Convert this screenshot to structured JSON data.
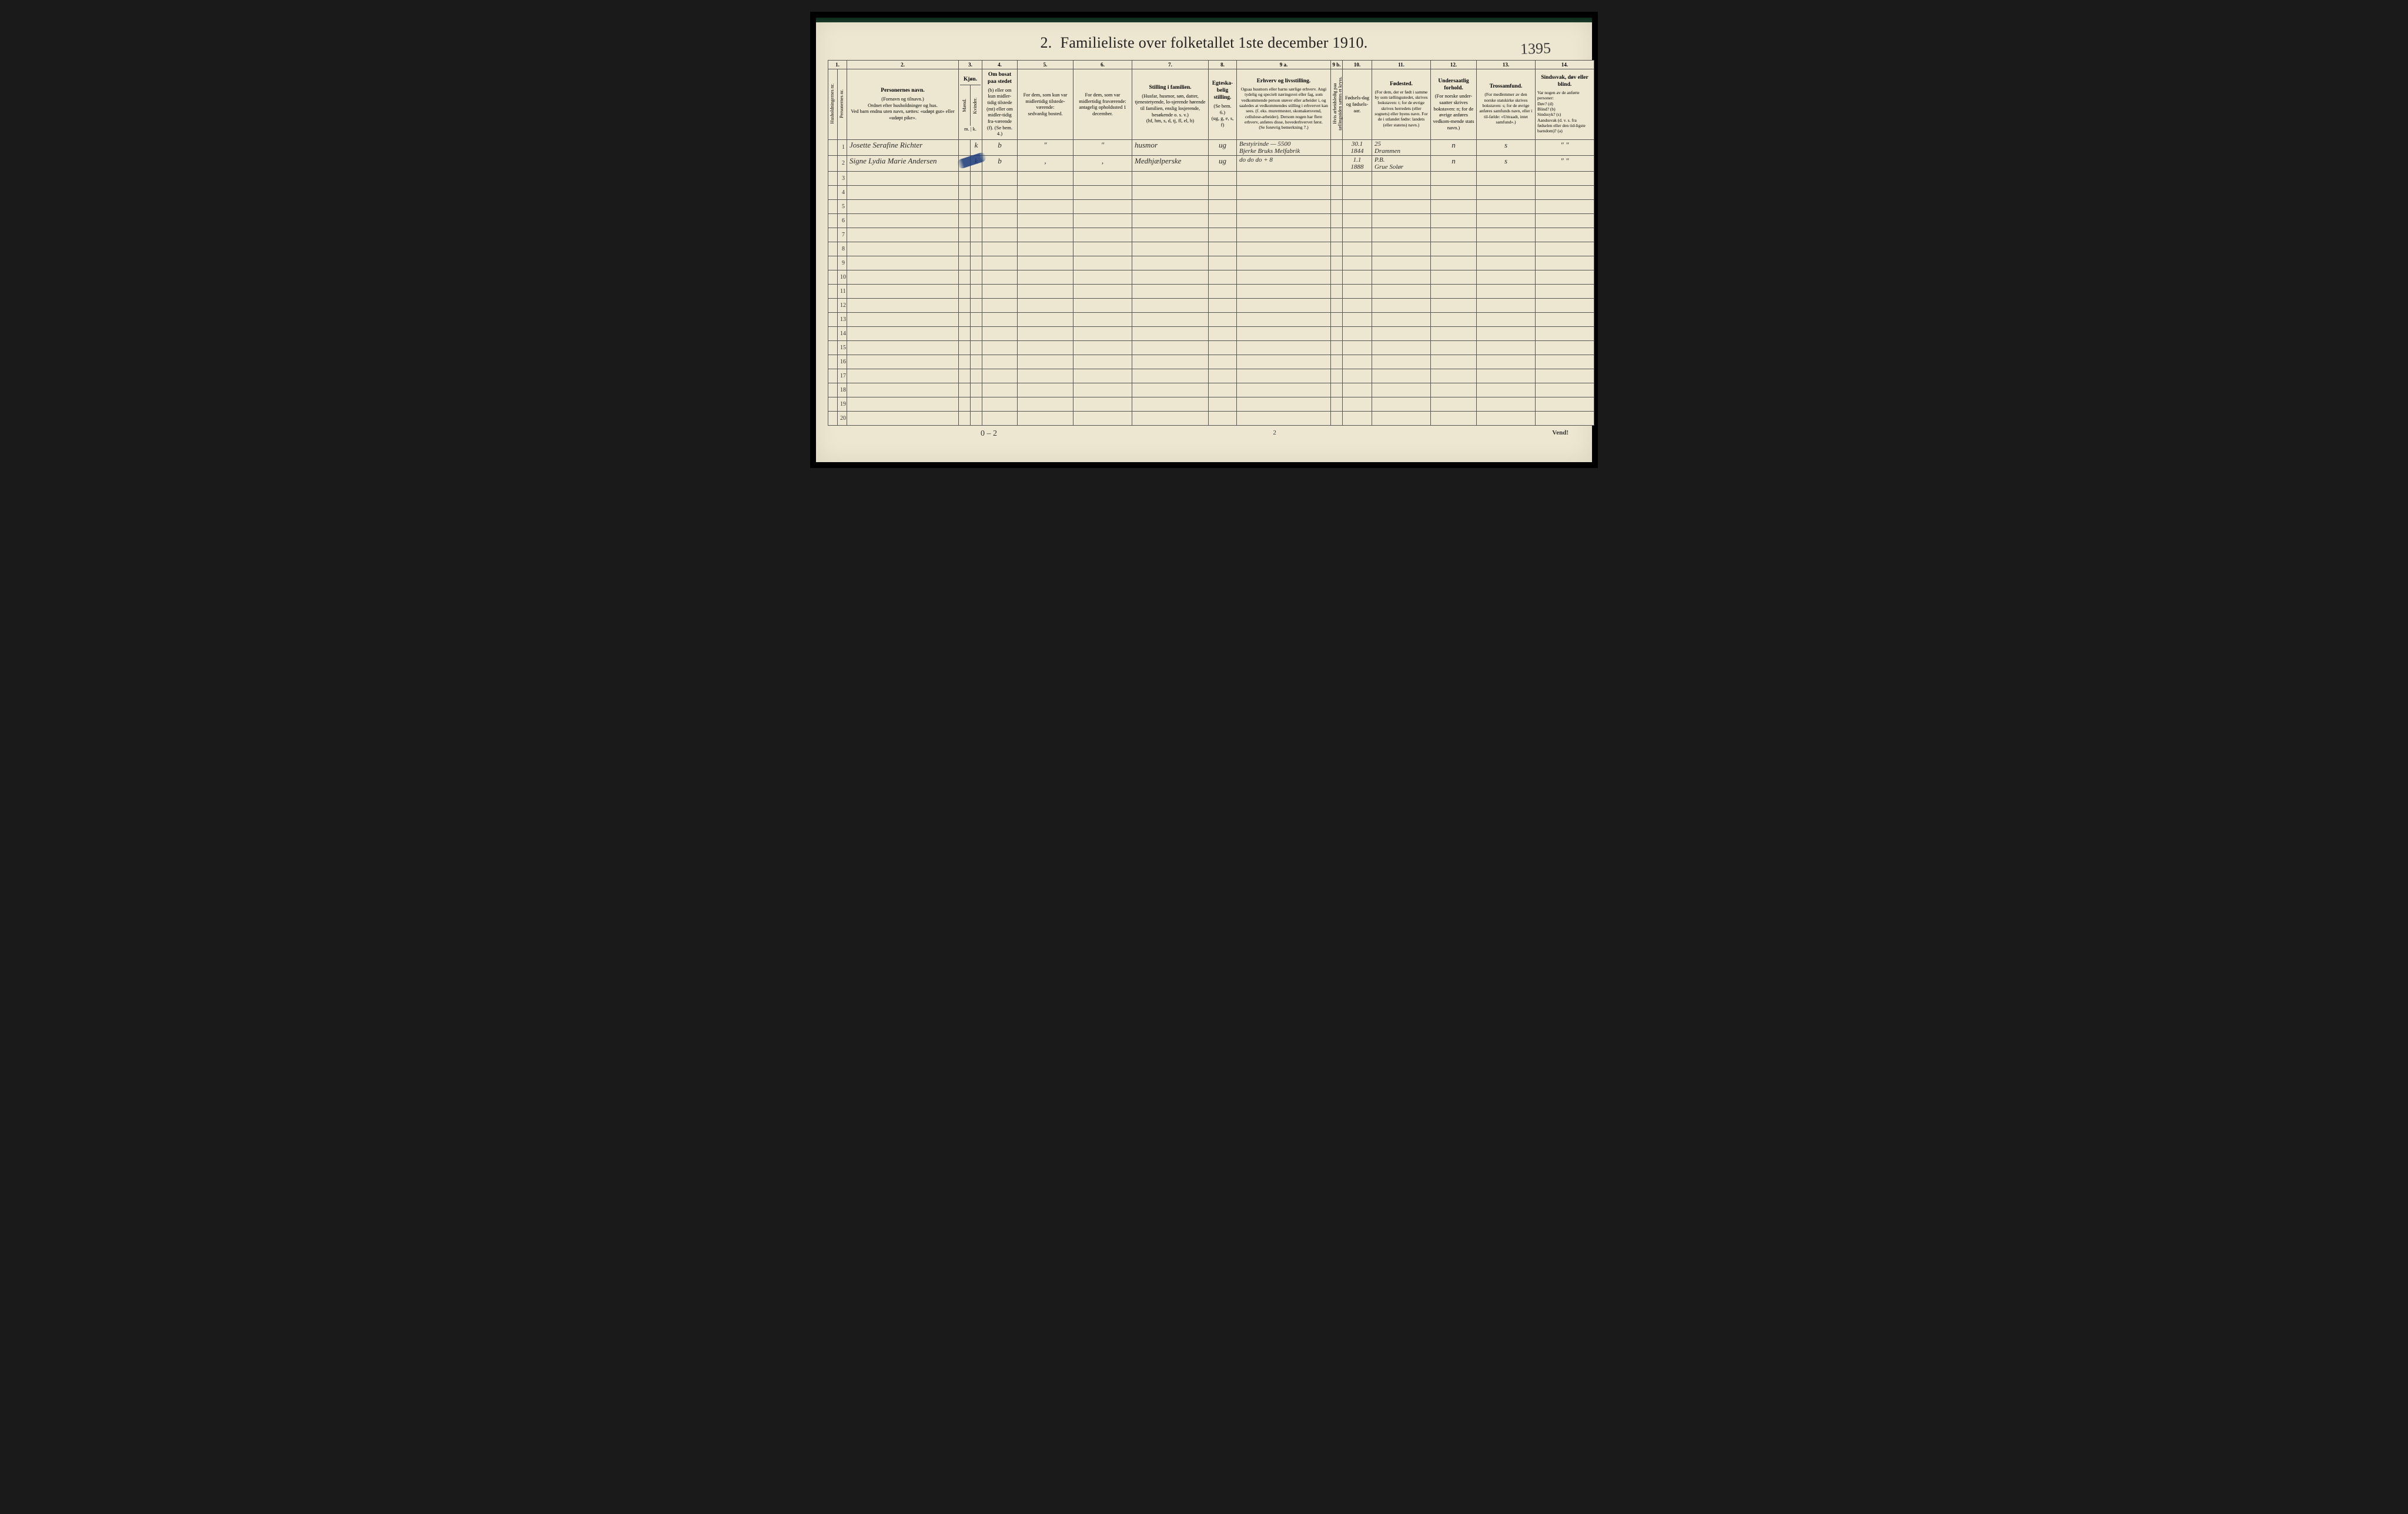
{
  "handwritten_topright": "1395",
  "title_num": "2.",
  "title_text": "Familieliste over folketallet 1ste december 1910.",
  "colnums": [
    "1.",
    "2.",
    "3.",
    "4.",
    "5.",
    "6.",
    "7.",
    "8.",
    "9 a.",
    "9 b.",
    "10.",
    "11.",
    "12.",
    "13.",
    "14."
  ],
  "headers": {
    "h1a": "Husholdningernes nr.",
    "h1b": "Personernes nr.",
    "h2_title": "Personernes navn.",
    "h2_sub": "(Fornavn og tilnavn.)\nOrdnet efter husholdninger og hus.\nVed barn endnu uten navn, sættes: «udøpt gut» eller «udøpt pike».",
    "h3_title": "Kjøn.",
    "h3a": "Mænd.",
    "h3b": "Kvinder.",
    "h3_note": "m. | k.",
    "h4_title": "Om bosat paa stedet",
    "h4_sub": "(b) eller om kun midler-tidig tilstede (mt) eller om midler-tidig fra-værende (f). (Se bem. 4.)",
    "h5": "For dem, som kun var midlertidig tilstede-værende:\nsedvanlig bosted.",
    "h6": "For dem, som var midlertidig fraværende:\nantagelig opholdssted 1 december.",
    "h7_title": "Stilling i familien.",
    "h7_sub": "(Husfar, husmor, søn, datter, tjenestetyende, lo-sjerende hørende til familien, enslig losjerende, besøkende o. s. v.)\n(hf, hm, s, d, tj, fl, el, b)",
    "h8_title": "Egteska-belig stilling.",
    "h8_sub": "(Se bem. 6.)\n(ug, g, e, s, f)",
    "h9a_title": "Erhverv og livsstilling.",
    "h9a_sub": "Ogsaa husmors eller barns særlige erhverv. Angi tydelig og specielt næringsvei eller fag, som vedkommende person utøver eller arbeider i, og saaledes at vedkommendes stilling i erhvervet kan sees. (f. eks. murermester, skomakersvend, cellulose-arbeider). Dersom nogen har flere erhverv, anføres disse, hovederhvervet først.\n(Se forøvrig bemerkning 7.)",
    "h9b": "Hvis arbeidsledig paa tællingstiden sættes et kryss.",
    "h10": "Fødsels-dag og fødsels-aar.",
    "h11_title": "Fødested.",
    "h11_sub": "(For dem, der er født i samme by som tællingsstedet, skrives bokstaven: t; for de øvrige skrives herredets (eller sognets) eller byens navn. For de i utlandet fødte: landets (eller statens) navn.)",
    "h12_title": "Undersaatlig forhold.",
    "h12_sub": "(For norske under-saatter skrives bokstaven: n; for de øvrige anføres vedkom-mende stats navn.)",
    "h13_title": "Trossamfund.",
    "h13_sub": "(For medlemmer av den norske statskirke skrives bokstaven: s; for de øvrige anføres samfunds navn, eller i til-fælde: «Uttraadt, intet samfund».)",
    "h14_title": "Sindssvak, døv eller blind.",
    "h14_sub": "Var nogen av de anførte personer:\nDøv?      (d)\nBlind?    (b)\nSindssyk? (s)\nAandssvak (d. v. s. fra fødselen eller den tid-ligste barndom)? (a)"
  },
  "rows": [
    {
      "n": "1",
      "name": "Josette Serafine Richter",
      "sex_m": "",
      "sex_k": "k",
      "res": "b",
      "c5": "\"",
      "c6": "\"",
      "c7": "husmor",
      "c8": "ug",
      "c9a": "Bestyirinde  — 5500\nBjerke Bruks Melfabrik",
      "c9b": "",
      "c10": "30.1\n1844",
      "c11": "25\nDrammen",
      "c12": "n",
      "c13": "s",
      "c14": "\"   \""
    },
    {
      "n": "2",
      "name": "Signe Lydia Marie Andersen",
      "sex_m": "",
      "sex_k": "k",
      "res": "b",
      "c5": ",",
      "c6": ",",
      "c7": "Medhjælperske",
      "c8": "ug",
      "c9a": "do    do    do   + 8",
      "c9b": "",
      "c10": "1.1\n1888",
      "c11": "P.B.\nGrue Solør",
      "c12": "n",
      "c13": "s",
      "c14": "\"   \""
    },
    {
      "n": "3"
    },
    {
      "n": "4"
    },
    {
      "n": "5"
    },
    {
      "n": "6"
    },
    {
      "n": "7"
    },
    {
      "n": "8"
    },
    {
      "n": "9"
    },
    {
      "n": "10"
    },
    {
      "n": "11"
    },
    {
      "n": "12"
    },
    {
      "n": "13"
    },
    {
      "n": "14"
    },
    {
      "n": "15"
    },
    {
      "n": "16"
    },
    {
      "n": "17"
    },
    {
      "n": "18"
    },
    {
      "n": "19"
    },
    {
      "n": "20"
    }
  ],
  "bottom_left": "0 – 2",
  "bottom_center": "2",
  "bottom_right": "Vend!",
  "colors": {
    "page_bg": "#ede6d0",
    "border": "#555555",
    "ink": "#2a2a2a",
    "blue_stroke": "#1a3a7a",
    "outer_bg": "#1a1a1a"
  },
  "fonts": {
    "title_pt": 26,
    "header_pt": 8.5,
    "colnum_pt": 9,
    "body_hand_pt": 13,
    "rownum_pt": 10
  }
}
